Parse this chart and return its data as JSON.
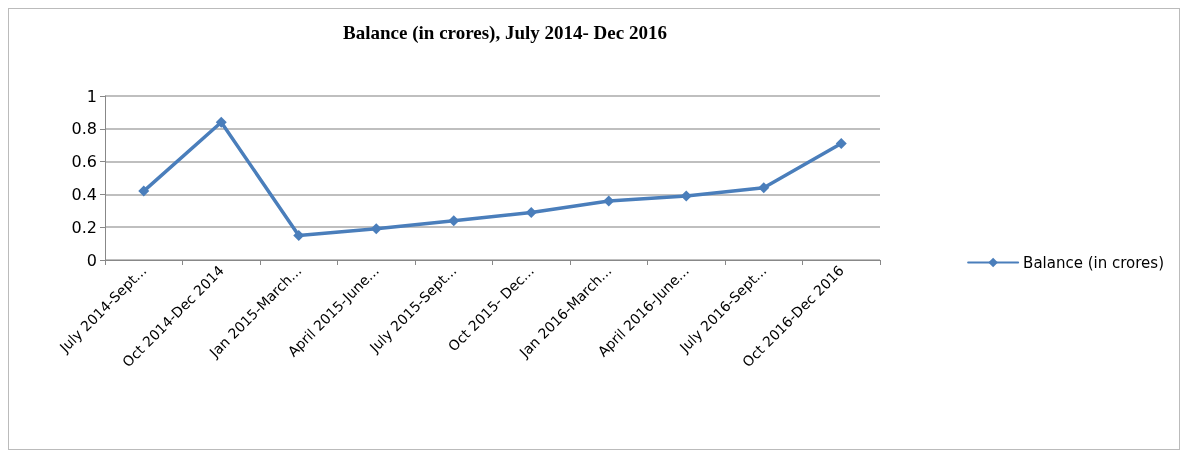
{
  "chart_data": {
    "type": "line",
    "title": "Balance (in crores), July 2014- Dec 2016",
    "categories": [
      "July 2014-Sept...",
      "Oct 2014-Dec 2014",
      "Jan 2015-March...",
      "April 2015-June...",
      "July 2015-Sept...",
      "Oct 2015- Dec...",
      "Jan 2016-March...",
      "April 2016-June...",
      "July 2016-Sept...",
      "Oct 2016-Dec 2016"
    ],
    "series": [
      {
        "name": "Balance (in crores)",
        "color": "#4a7ebb",
        "values": [
          0.42,
          0.84,
          0.15,
          0.19,
          0.24,
          0.29,
          0.36,
          0.39,
          0.44,
          0.71
        ]
      }
    ],
    "ylim": [
      0,
      1
    ],
    "yticks": [
      0,
      0.2,
      0.4,
      0.6,
      0.8,
      1
    ],
    "grid": "y",
    "legend": "right",
    "marker": "diamond",
    "line_style": "solid"
  }
}
